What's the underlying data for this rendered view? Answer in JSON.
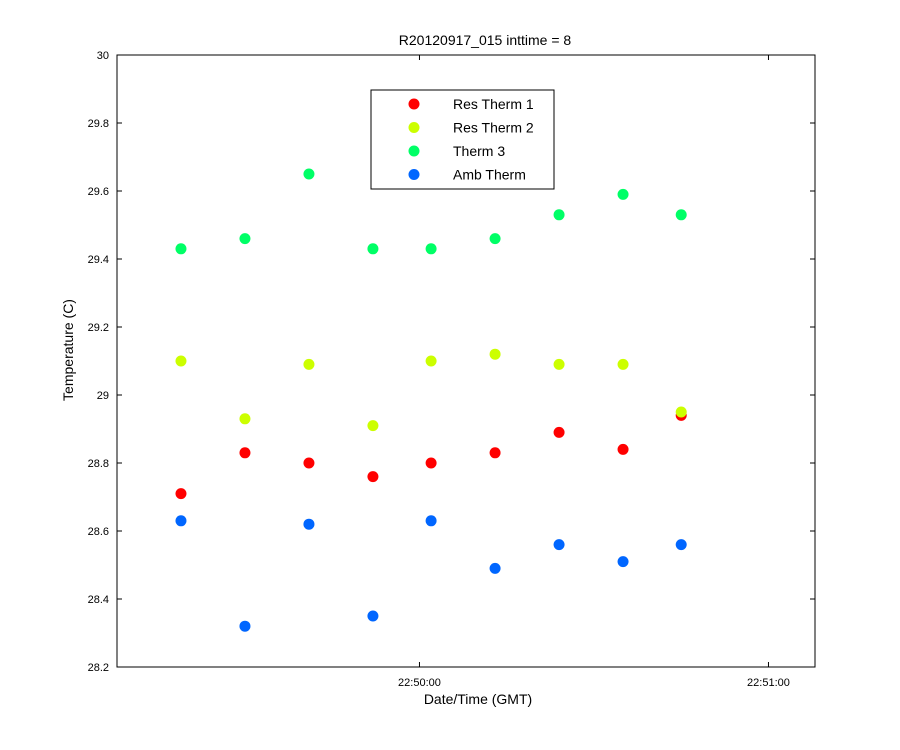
{
  "chart_data": {
    "type": "scatter",
    "title": "R20120917_015 inttime = 8",
    "xlabel": "Date/Time (GMT)",
    "ylabel": "Temperature (C)",
    "ylim": [
      28.2,
      30
    ],
    "xlim": [
      "22:49:08",
      "22:51:08"
    ],
    "yticks": [
      "28.2",
      "28.4",
      "28.6",
      "28.8",
      "29",
      "29.2",
      "29.4",
      "29.6",
      "29.8",
      "30"
    ],
    "xticks": [
      {
        "value": "22:50:00",
        "label": "22:50:00"
      },
      {
        "value": "22:51:00",
        "label": "22:51:00"
      }
    ],
    "grid": false,
    "legend_position": "top-center",
    "x": [
      "22:49:19",
      "22:49:30",
      "22:49:41",
      "22:49:52",
      "22:50:02",
      "22:50:13",
      "22:50:24",
      "22:50:35",
      "22:50:45"
    ],
    "series": [
      {
        "name": "Res Therm 1",
        "color": "#ff0000",
        "values": [
          28.71,
          28.83,
          28.8,
          28.76,
          28.8,
          28.83,
          28.89,
          28.84,
          28.94
        ]
      },
      {
        "name": "Res Therm 2",
        "color": "#ccff00",
        "values": [
          29.1,
          28.93,
          29.09,
          28.91,
          29.1,
          29.12,
          29.09,
          29.09,
          28.95
        ]
      },
      {
        "name": "Therm 3",
        "color": "#00ff66",
        "values": [
          29.43,
          29.46,
          29.65,
          29.43,
          29.43,
          29.46,
          29.53,
          29.59,
          29.53
        ]
      },
      {
        "name": "Amb Therm",
        "color": "#0066ff",
        "values": [
          28.63,
          28.32,
          28.62,
          28.35,
          28.63,
          28.49,
          28.56,
          28.51,
          28.56
        ]
      }
    ]
  }
}
